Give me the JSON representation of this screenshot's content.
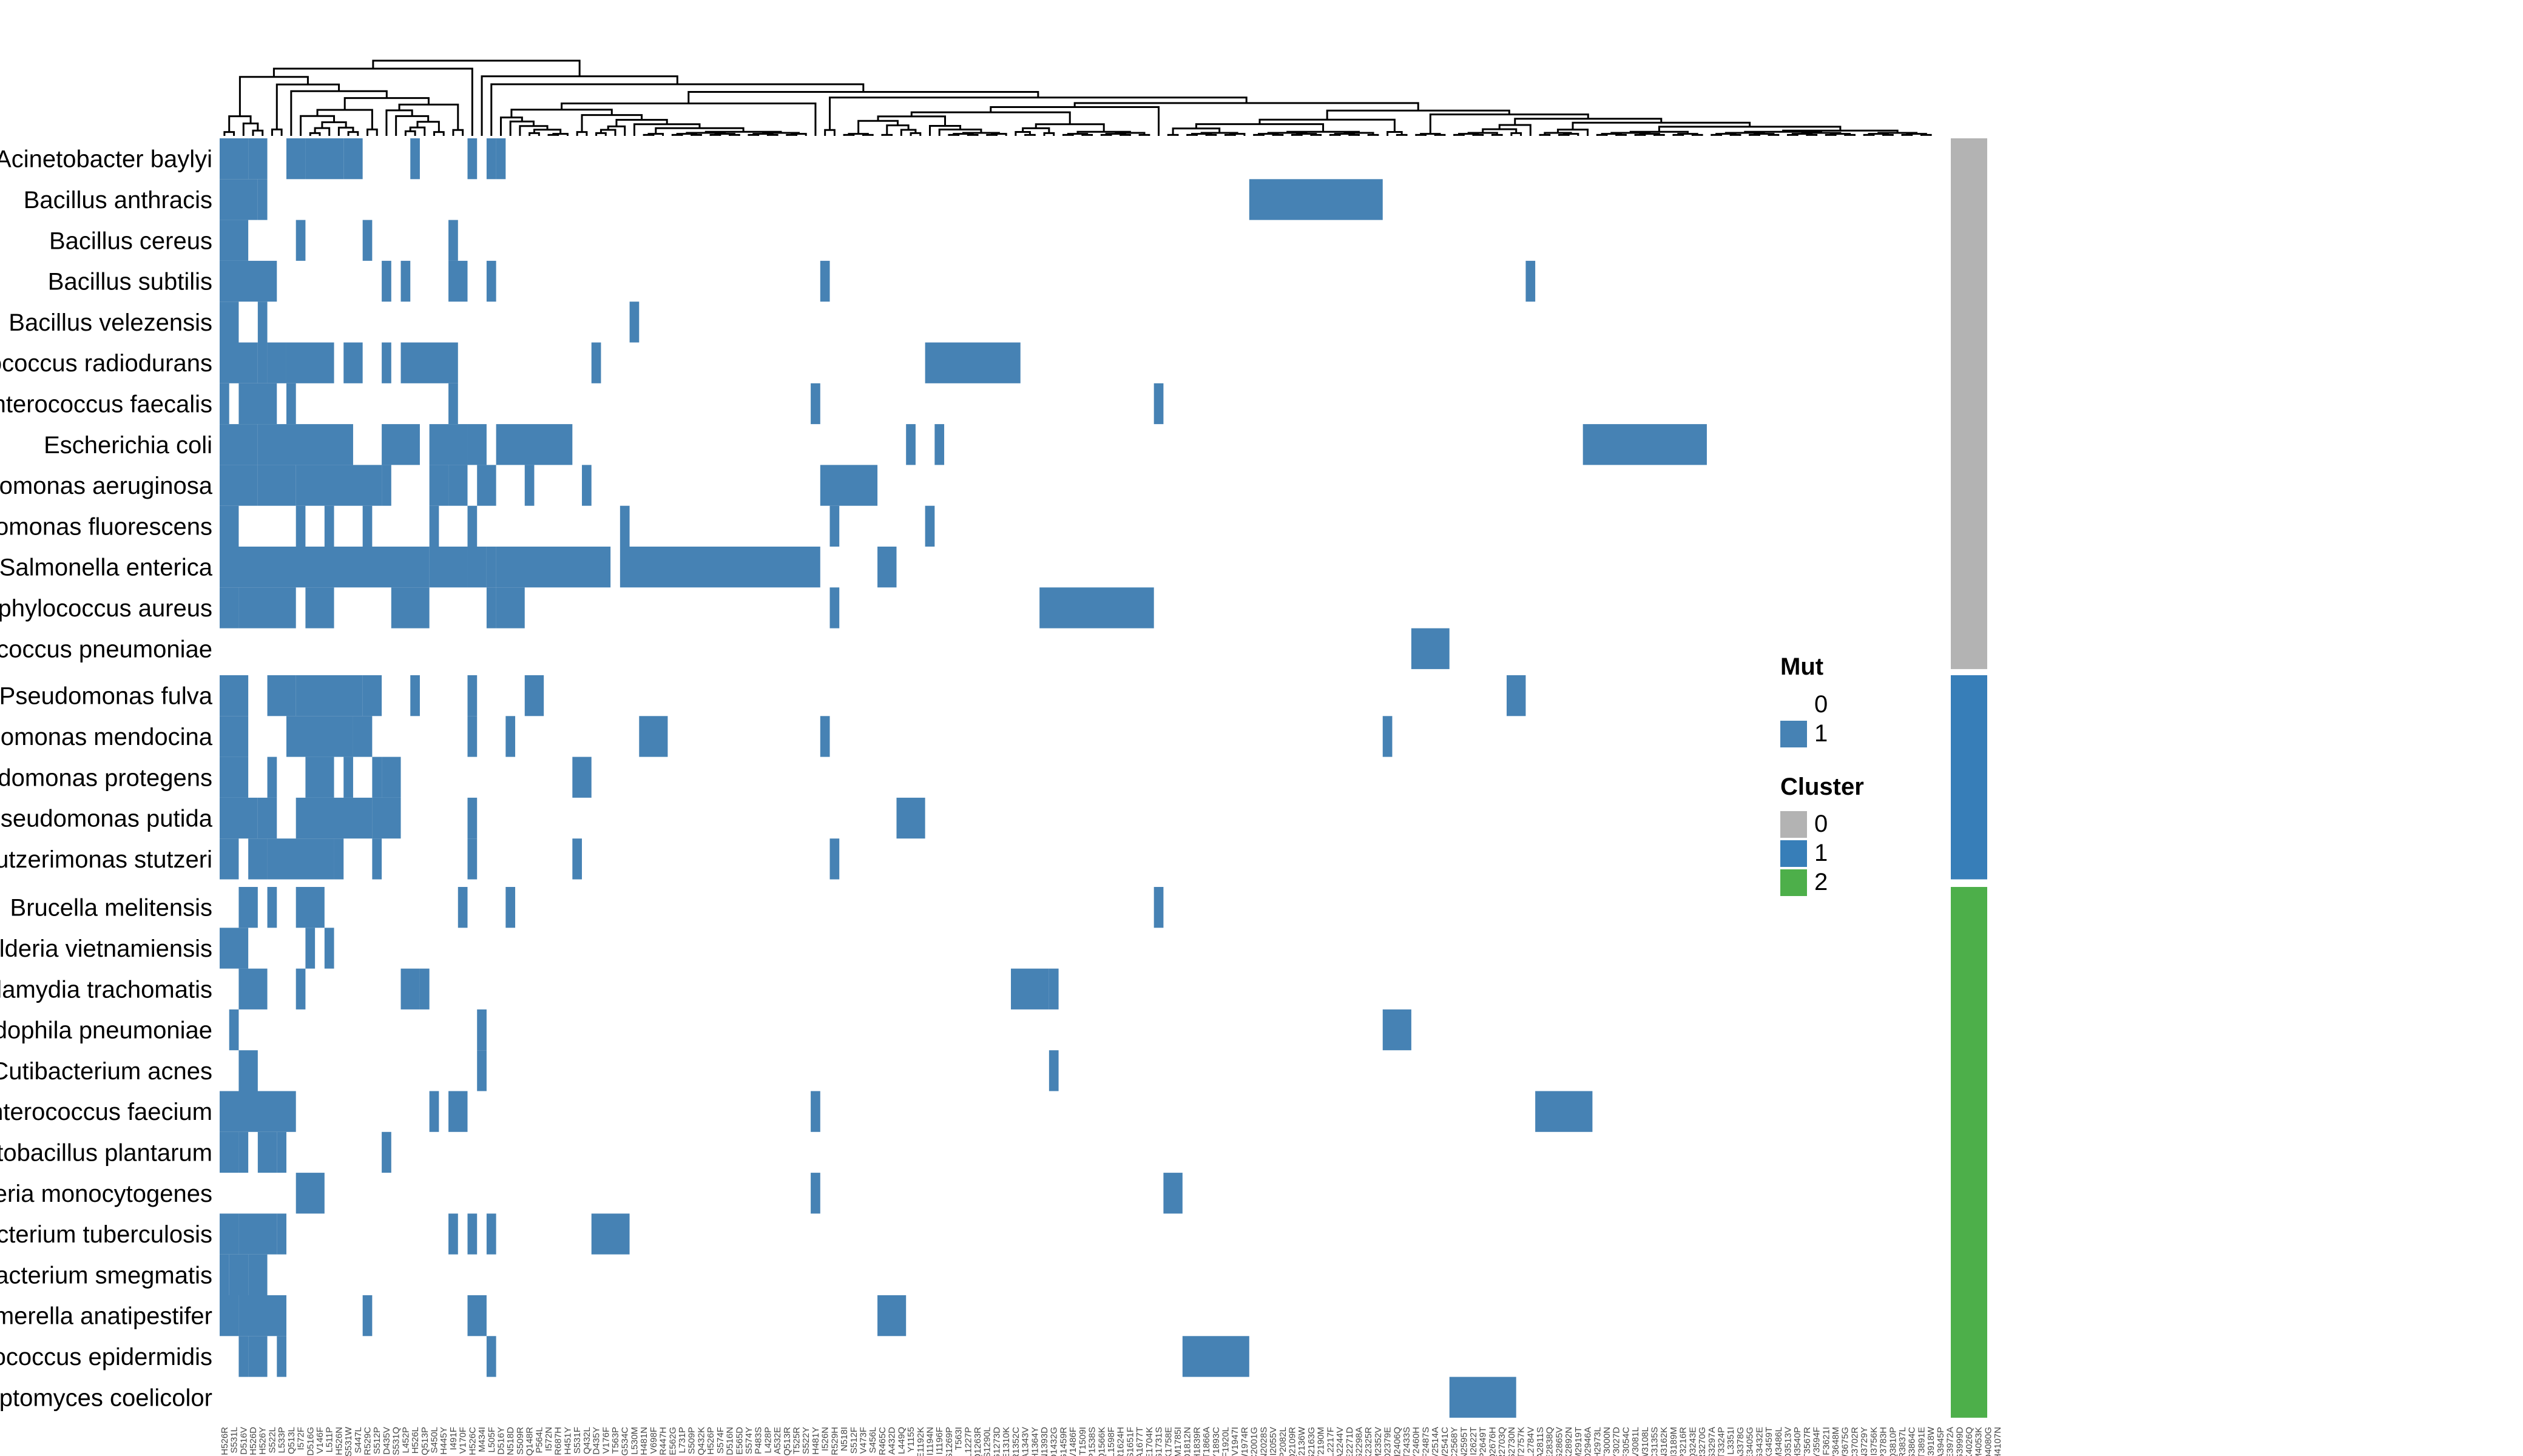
{
  "chart_data": {
    "type": "heatmap",
    "title": "",
    "rows": [
      "Acinetobacter baylyi",
      "Bacillus anthracis",
      "Bacillus cereus",
      "Bacillus subtilis",
      "Bacillus velezensis",
      "Deinococcus radiodurans",
      "Enterococcus faecalis",
      "Escherichia coli",
      "Pseudomonas aeruginosa",
      "Pseudomonas fluorescens",
      "Salmonella enterica",
      "Staphylococcus aureus",
      "Streptococcus pneumoniae",
      "Pseudomonas fulva",
      "Pseudomonas mendocina",
      "Pseudomonas protegens",
      "Pseudomonas putida",
      "Stutzerimonas stutzeri",
      "Brucella melitensis",
      "Burkholderia vietnamiensis",
      "Chlamydia trachomatis",
      "Chlamydophila pneumoniae",
      "Cutibacterium acnes",
      "Enterococcus faecium",
      "Lactobacillus plantarum",
      "Listeria monocytogenes",
      "Mycobacterium tuberculosis",
      "Mycobacterium smegmatis",
      "Riemerella anatipestifer",
      "Staphylococcus epidermidis",
      "Streptomyces coelicolor"
    ],
    "row_clusters": [
      0,
      0,
      0,
      0,
      0,
      0,
      0,
      0,
      0,
      0,
      0,
      0,
      0,
      1,
      1,
      1,
      1,
      1,
      2,
      2,
      2,
      2,
      2,
      2,
      2,
      2,
      2,
      2,
      2,
      2,
      2
    ],
    "n_columns": 180,
    "mutated_column_spans": [
      [
        [
          0,
          2
        ],
        [
          3,
          4
        ],
        [
          7,
          8
        ],
        [
          9,
          12
        ],
        [
          13,
          14
        ],
        [
          20,
          20
        ],
        [
          26,
          26
        ],
        [
          28,
          28
        ],
        [
          29,
          29
        ]
      ],
      [
        [
          0,
          3
        ],
        [
          4,
          4
        ],
        [
          108,
          121
        ]
      ],
      [
        [
          0,
          2
        ],
        [
          8,
          8
        ],
        [
          15,
          15
        ],
        [
          24,
          24
        ]
      ],
      [
        [
          0,
          5
        ],
        [
          17,
          17
        ],
        [
          19,
          19
        ],
        [
          24,
          25
        ],
        [
          28,
          28
        ],
        [
          63,
          63
        ],
        [
          137,
          137
        ]
      ],
      [
        [
          0,
          1
        ],
        [
          4,
          4
        ],
        [
          43,
          43
        ]
      ],
      [
        [
          0,
          3
        ],
        [
          4,
          4
        ],
        [
          5,
          6
        ],
        [
          7,
          11
        ],
        [
          13,
          14
        ],
        [
          17,
          17
        ],
        [
          19,
          24
        ],
        [
          39,
          39
        ],
        [
          74,
          83
        ]
      ],
      [
        [
          0,
          0
        ],
        [
          2,
          5
        ],
        [
          7,
          7
        ],
        [
          24,
          24
        ],
        [
          62,
          62
        ],
        [
          98,
          98
        ]
      ],
      [
        [
          0,
          3
        ],
        [
          4,
          13
        ],
        [
          17,
          20
        ],
        [
          22,
          25
        ],
        [
          26,
          27
        ],
        [
          29,
          36
        ],
        [
          72,
          72
        ],
        [
          75,
          75
        ],
        [
          143,
          155
        ]
      ],
      [
        [
          0,
          3
        ],
        [
          4,
          7
        ],
        [
          8,
          16
        ],
        [
          17,
          17
        ],
        [
          22,
          23
        ],
        [
          24,
          25
        ],
        [
          27,
          28
        ],
        [
          32,
          32
        ],
        [
          38,
          38
        ],
        [
          63,
          68
        ]
      ],
      [
        [
          0,
          1
        ],
        [
          8,
          8
        ],
        [
          11,
          11
        ],
        [
          15,
          15
        ],
        [
          22,
          22
        ],
        [
          26,
          26
        ],
        [
          42,
          42
        ],
        [
          64,
          64
        ],
        [
          74,
          74
        ]
      ],
      [
        [
          0,
          21
        ],
        [
          22,
          25
        ],
        [
          26,
          27
        ],
        [
          28,
          28
        ],
        [
          29,
          40
        ],
        [
          42,
          62
        ],
        [
          69,
          70
        ]
      ],
      [
        [
          0,
          1
        ],
        [
          2,
          7
        ],
        [
          9,
          11
        ],
        [
          18,
          21
        ],
        [
          28,
          28
        ],
        [
          29,
          31
        ],
        [
          64,
          64
        ],
        [
          86,
          97
        ]
      ],
      [
        [
          125,
          128
        ]
      ],
      [
        [
          0,
          2
        ],
        [
          5,
          7
        ],
        [
          8,
          14
        ],
        [
          15,
          16
        ],
        [
          20,
          20
        ],
        [
          26,
          26
        ],
        [
          32,
          33
        ],
        [
          135,
          136
        ]
      ],
      [
        [
          0,
          2
        ],
        [
          7,
          13
        ],
        [
          14,
          15
        ],
        [
          26,
          26
        ],
        [
          30,
          30
        ],
        [
          44,
          46
        ],
        [
          63,
          63
        ],
        [
          122,
          122
        ]
      ],
      [
        [
          0,
          2
        ],
        [
          5,
          5
        ],
        [
          9,
          11
        ],
        [
          13,
          13
        ],
        [
          16,
          16
        ],
        [
          17,
          18
        ],
        [
          37,
          38
        ]
      ],
      [
        [
          0,
          3
        ],
        [
          4,
          5
        ],
        [
          8,
          15
        ],
        [
          16,
          18
        ],
        [
          26,
          26
        ],
        [
          71,
          73
        ]
      ],
      [
        [
          0,
          1
        ],
        [
          3,
          4
        ],
        [
          5,
          11
        ],
        [
          12,
          12
        ],
        [
          16,
          16
        ],
        [
          26,
          26
        ],
        [
          37,
          37
        ],
        [
          64,
          64
        ]
      ],
      [
        [
          2,
          3
        ],
        [
          5,
          5
        ],
        [
          8,
          10
        ],
        [
          25,
          25
        ],
        [
          30,
          30
        ],
        [
          98,
          98
        ]
      ],
      [
        [
          0,
          2
        ],
        [
          9,
          9
        ],
        [
          11,
          11
        ]
      ],
      [
        [
          2,
          4
        ],
        [
          8,
          8
        ],
        [
          19,
          20
        ],
        [
          21,
          21
        ],
        [
          83,
          86
        ],
        [
          87,
          87
        ]
      ],
      [
        [
          1,
          1
        ],
        [
          27,
          27
        ],
        [
          122,
          124
        ]
      ],
      [
        [
          2,
          3
        ],
        [
          27,
          27
        ],
        [
          87,
          87
        ]
      ],
      [
        [
          0,
          7
        ],
        [
          22,
          22
        ],
        [
          24,
          25
        ],
        [
          62,
          62
        ],
        [
          138,
          143
        ]
      ],
      [
        [
          0,
          1
        ],
        [
          2,
          2
        ],
        [
          4,
          5
        ],
        [
          6,
          6
        ],
        [
          17,
          17
        ]
      ],
      [
        [
          8,
          10
        ],
        [
          62,
          62
        ],
        [
          99,
          100
        ]
      ],
      [
        [
          0,
          1
        ],
        [
          2,
          5
        ],
        [
          6,
          6
        ],
        [
          24,
          24
        ],
        [
          26,
          26
        ],
        [
          28,
          28
        ],
        [
          39,
          42
        ]
      ],
      [
        [
          0,
          0
        ],
        [
          1,
          2
        ],
        [
          3,
          4
        ]
      ],
      [
        [
          0,
          1
        ],
        [
          2,
          6
        ],
        [
          15,
          15
        ],
        [
          26,
          27
        ],
        [
          69,
          71
        ]
      ],
      [
        [
          2,
          2
        ],
        [
          3,
          4
        ],
        [
          6,
          6
        ],
        [
          28,
          28
        ],
        [
          101,
          107
        ]
      ],
      [
        [
          129,
          135
        ]
      ]
    ],
    "column_labels": [
      "H526R",
      "S531L",
      "D516V",
      "H526D",
      "H526Y",
      "S522L",
      "L533P",
      "Q513L",
      "I572F",
      "D516G",
      "V146F",
      "L511P",
      "H526N",
      "S531W",
      "S447L",
      "R529C",
      "S512P",
      "D435V",
      "S531Q",
      "L452P",
      "H526L",
      "Q513P",
      "S450L",
      "H445Y",
      "I491F",
      "V170F",
      "H526C",
      "M434I",
      "L505F",
      "D516Y",
      "N518D",
      "S509R",
      "Q148R",
      "P564L",
      "I572N",
      "R687H",
      "H451Y",
      "S531F",
      "Q432L",
      "D435Y",
      "V176F",
      "T563P",
      "G534C",
      "L530M",
      "H481N",
      "V698F",
      "R447H",
      "E562G",
      "L731P",
      "S509P",
      "Q432K",
      "H526P",
      "S574F",
      "D516N",
      "E565D",
      "S574Y",
      "P483S",
      "L428P",
      "A532E",
      "Q513R",
      "T525R",
      "S522Y",
      "H481Y",
      "I526N",
      "R529H",
      "N518I",
      "S512F",
      "V473F",
      "S456L",
      "R465C",
      "A432D",
      "L449Q",
      "Y1155",
      "E1192K",
      "I1194N",
      "I1196F",
      "S1269P",
      "T563I",
      "L1227P",
      "Q1263R",
      "S1290L",
      "G1273D",
      "E1310K",
      "R1352C",
      "A1343V",
      "H1364Y",
      "N1393D",
      "D1432G",
      "G1459R",
      "V1486F",
      "T1509I",
      "P1538S",
      "Q1566K",
      "L1598F",
      "R1624H",
      "S1651F",
      "A1677T",
      "E1704K",
      "G1731S",
      "K1758E",
      "M1785I",
      "D1812N",
      "H1839R",
      "T1866A",
      "Y1893C",
      "F1920L",
      "V1947I",
      "W1974R",
      "C2001G",
      "N2028S",
      "I2055V",
      "P2082L",
      "Q2109R",
      "R2136W",
      "S2163G",
      "T2190M",
      "L2217F",
      "A2244V",
      "E2271D",
      "G2298A",
      "K2325R",
      "M2352V",
      "D2379E",
      "H2406Q",
      "T2433S",
      "Y2460H",
      "F2487S",
      "V2514A",
      "W2541C",
      "C2568Y",
      "N2595T",
      "I2622T",
      "P2649T",
      "Q2676H",
      "R2703Q",
      "S2730N",
      "T2757K",
      "L2784V",
      "A2811S",
      "E2838Q",
      "G2865V",
      "K2892N",
      "M2919T",
      "D2946A",
      "H2973L",
      "T3000N",
      "Y3027D",
      "F3054C",
      "V3081L",
      "W3108L",
      "C3135S",
      "N3162K",
      "I3189M",
      "P3216R",
      "Q3243E",
      "R3270G",
      "S3297A",
      "T3324P",
      "L3351I",
      "A3378G",
      "E3405G",
      "G3432E",
      "K3459T",
      "M3486L",
      "D3513V",
      "H3540P",
      "T3567R",
      "Y3594F",
      "F3621I",
      "V3648M",
      "W3675G",
      "C3702R",
      "N3729Y",
      "I3756K",
      "P3783H",
      "Q3810P",
      "R3837L",
      "S3864C",
      "T3891E",
      "L3918W",
      "A3945P",
      "E3972A",
      "G3999D",
      "K4026Q",
      "M4053K",
      "D4080G",
      "H4107N"
    ],
    "legend": {
      "mut_title": "Mut",
      "mut_levels": [
        {
          "label": "0",
          "color": "#FFFFFF"
        },
        {
          "label": "1",
          "color": "#4682B4"
        }
      ],
      "cluster_title": "Cluster",
      "cluster_levels": [
        {
          "label": "0",
          "color": "#B3B3B3"
        },
        {
          "label": "1",
          "color": "#377EB8"
        },
        {
          "label": "2",
          "color": "#4DAF4A"
        }
      ]
    },
    "colors": {
      "mutation": "#4682B4",
      "background": "#FFFFFF",
      "dendrogram": "#000000"
    },
    "dendrogram": "top (columns)",
    "legend_position": "right",
    "grid": false
  }
}
